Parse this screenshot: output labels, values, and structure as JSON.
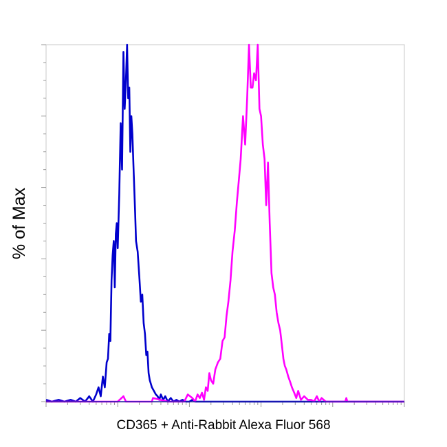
{
  "chart_data": {
    "type": "line",
    "title": "",
    "xlabel": "CD365 + Anti-Rabbit Alexa Fluor 568",
    "ylabel": "% of Max",
    "xscale": "log",
    "xlim": [
      1,
      100000
    ],
    "ylim": [
      0,
      100
    ],
    "grid": false,
    "legend": "none",
    "series": [
      {
        "color": "#0000cc",
        "x": [
          1.0,
          1.2,
          1.5,
          1.8,
          2.2,
          2.6,
          3.0,
          3.5,
          4.0,
          4.5,
          5.0,
          5.4,
          5.8,
          6.2,
          6.6,
          7.0,
          7.3,
          7.6,
          7.9,
          8.2,
          8.5,
          8.8,
          9.1,
          9.4,
          9.7,
          10.0,
          10.5,
          11.0,
          11.5,
          12.0,
          12.5,
          13.0,
          13.5,
          14.0,
          14.5,
          15.0,
          15.5,
          16.0,
          16.5,
          17.0,
          17.5,
          18.0,
          19.0,
          20.0,
          21.0,
          22.0,
          23.0,
          24.0,
          25.0,
          26.0,
          27.0,
          28.0,
          30.0,
          32.0,
          34.0,
          36.0,
          38.0,
          40.0,
          43.0,
          46.0,
          50.0,
          55.0,
          60.0,
          66.0,
          72.0,
          80.0,
          90.0,
          100.0,
          110.0,
          120.0,
          140.0,
          160.0,
          200.0,
          300.0,
          500.0,
          1000.0,
          10000.0,
          100000.0
        ],
        "y": [
          0.5,
          0,
          0.5,
          0,
          0.5,
          0,
          1.0,
          0,
          1.5,
          0,
          2.0,
          4.0,
          1.5,
          7.0,
          4.0,
          11.0,
          12.0,
          19.0,
          17.0,
          34.0,
          41.0,
          45.0,
          32.0,
          47.0,
          50.0,
          43.0,
          58.0,
          78.0,
          65.0,
          98.0,
          82.0,
          90.0,
          100.0,
          85.0,
          88.0,
          70.0,
          80.0,
          75.0,
          67.0,
          60.0,
          53.0,
          45.0,
          42.0,
          35.0,
          28.0,
          30.0,
          22.0,
          19.0,
          13.0,
          14.0,
          8.0,
          6.0,
          4.0,
          3.0,
          2.0,
          1.5,
          0.5,
          2.0,
          0.5,
          1.5,
          0,
          1.0,
          0,
          0.5,
          0,
          0.5,
          0,
          0,
          0.5,
          0,
          0,
          0,
          0,
          0,
          0,
          0,
          0,
          0
        ]
      },
      {
        "color": "#ff00ff",
        "x": [
          1.0,
          10.0,
          12.0,
          13.0,
          20.0,
          30.0,
          31.0,
          50.0,
          85.0,
          95.0,
          110.0,
          120.0,
          130.0,
          140.0,
          150.0,
          160.0,
          170.0,
          180.0,
          190.0,
          200.0,
          215.0,
          230.0,
          250.0,
          270.0,
          290.0,
          310.0,
          330.0,
          350.0,
          375.0,
          400.0,
          430.0,
          460.0,
          490.0,
          520.0,
          560.0,
          600.0,
          640.0,
          680.0,
          720.0,
          760.0,
          800.0,
          850.0,
          900.0,
          950.0,
          1000.0,
          1060.0,
          1120.0,
          1180.0,
          1250.0,
          1320.0,
          1400.0,
          1480.0,
          1560.0,
          1650.0,
          1750.0,
          1850.0,
          1950.0,
          2050.0,
          2150.0,
          2250.0,
          2400.0,
          2550.0,
          2700.0,
          2900.0,
          3100.0,
          3300.0,
          3600.0,
          4000.0,
          4500.0,
          5000.0,
          5500.0,
          6000.0,
          6500.0,
          7000.0,
          8000.0,
          9000.0,
          10000.0,
          15000.0,
          15500.0,
          16000.0,
          20000.0,
          100000.0
        ],
        "y": [
          0,
          0,
          1.5,
          0,
          0,
          0,
          1.0,
          0,
          0,
          2.0,
          1.0,
          0,
          2.0,
          1.0,
          2.5,
          0.5,
          4.0,
          3.0,
          8.0,
          6.0,
          5.0,
          9.0,
          11.0,
          12.0,
          17.0,
          18.0,
          24.0,
          28.0,
          34.0,
          42.0,
          48.0,
          56.0,
          62.0,
          68.0,
          80.0,
          72.0,
          85.0,
          100.0,
          88.0,
          88.0,
          92.0,
          90.0,
          100.0,
          82.0,
          80.0,
          72.0,
          68.0,
          55.0,
          67.0,
          50.0,
          36.0,
          32.0,
          30.0,
          25.0,
          22.0,
          20.0,
          16.0,
          12.0,
          10.0,
          9.0,
          7.0,
          5.5,
          4.0,
          2.5,
          1.0,
          3.0,
          0.5,
          1.5,
          0.5,
          0.5,
          0,
          1.5,
          0,
          1.0,
          0,
          0,
          0,
          0,
          1.0,
          0,
          0,
          0
        ]
      }
    ]
  }
}
